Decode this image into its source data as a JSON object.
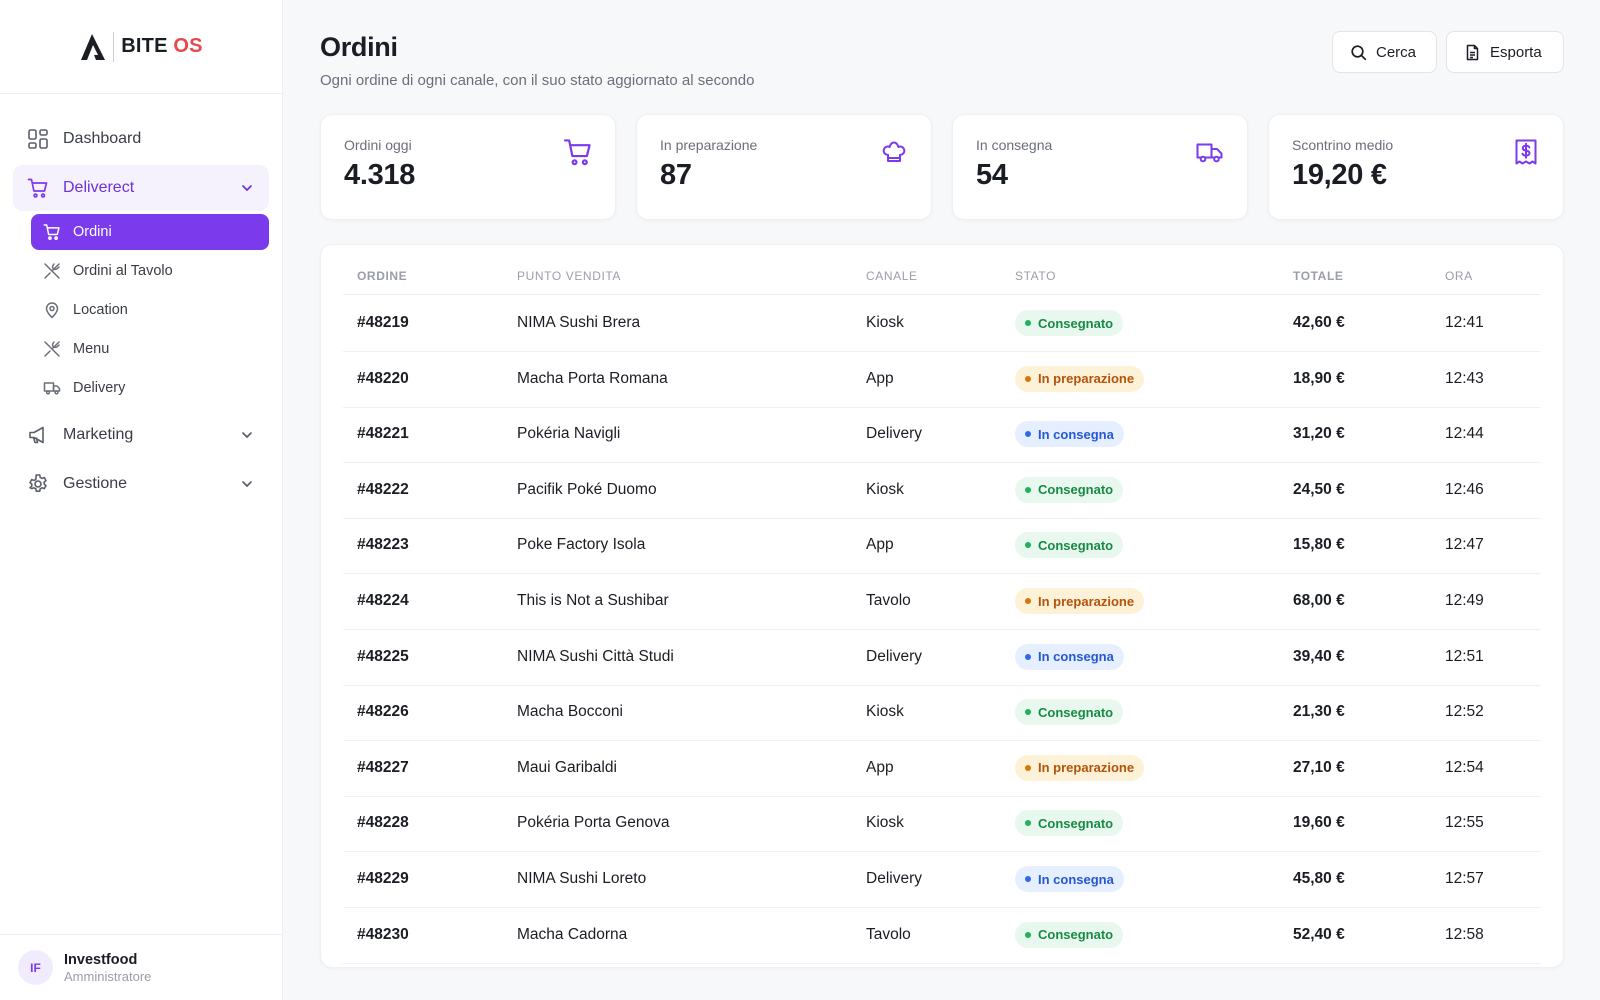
{
  "brand": {
    "name_main": "BITE",
    "name_accent": "OS",
    "accent_color": "#e5484d"
  },
  "sidebar": {
    "items": [
      {
        "label": "Dashboard",
        "icon": "dashboard-icon"
      },
      {
        "label": "Deliverect",
        "icon": "cart-icon",
        "expanded": true
      },
      {
        "label": "Marketing",
        "icon": "megaphone-icon"
      },
      {
        "label": "Gestione",
        "icon": "gear-icon"
      }
    ],
    "subitems": [
      {
        "label": "Ordini",
        "icon": "cart-icon",
        "active": true
      },
      {
        "label": "Ordini al Tavolo",
        "icon": "utensils-icon"
      },
      {
        "label": "Location",
        "icon": "map-pin-icon"
      },
      {
        "label": "Menu",
        "icon": "utensils-icon"
      },
      {
        "label": "Delivery",
        "icon": "truck-icon"
      }
    ]
  },
  "user": {
    "initials": "IF",
    "name": "Investfood",
    "role": "Amministratore"
  },
  "header": {
    "title": "Ordini",
    "subtitle": "Ogni ordine di ogni canale, con il suo stato aggiornato al secondo",
    "search_label": "Cerca",
    "export_label": "Esporta"
  },
  "stats": [
    {
      "label": "Ordini oggi",
      "value": "4.318",
      "icon": "cart-icon"
    },
    {
      "label": "In preparazione",
      "value": "87",
      "icon": "chef-hat-icon"
    },
    {
      "label": "In consegna",
      "value": "54",
      "icon": "truck-icon"
    },
    {
      "label": "Scontrino medio",
      "value": "19,20 €",
      "icon": "receipt-icon"
    }
  ],
  "colors": {
    "accent": "#7c3aed",
    "green": "#20b15a",
    "orange": "#d97706",
    "blue": "#2f6ae6"
  },
  "table": {
    "headers": {
      "order": "ORDINE",
      "store": "PUNTO VENDITA",
      "channel": "CANALE",
      "status": "STATO",
      "total": "TOTALE",
      "time": "ORA"
    },
    "rows": [
      {
        "order": "#48219",
        "store": "NIMA Sushi Brera",
        "channel": "Kiosk",
        "status": "Consegnato",
        "status_type": "green",
        "total": "42,60 €",
        "time": "12:41"
      },
      {
        "order": "#48220",
        "store": "Macha Porta Romana",
        "channel": "App",
        "status": "In preparazione",
        "status_type": "orange",
        "total": "18,90 €",
        "time": "12:43"
      },
      {
        "order": "#48221",
        "store": "Pokéria Navigli",
        "channel": "Delivery",
        "status": "In consegna",
        "status_type": "blue",
        "total": "31,20 €",
        "time": "12:44"
      },
      {
        "order": "#48222",
        "store": "Pacifik Poké Duomo",
        "channel": "Kiosk",
        "status": "Consegnato",
        "status_type": "green",
        "total": "24,50 €",
        "time": "12:46"
      },
      {
        "order": "#48223",
        "store": "Poke Factory Isola",
        "channel": "App",
        "status": "Consegnato",
        "status_type": "green",
        "total": "15,80 €",
        "time": "12:47"
      },
      {
        "order": "#48224",
        "store": "This is Not a Sushibar",
        "channel": "Tavolo",
        "status": "In preparazione",
        "status_type": "orange",
        "total": "68,00 €",
        "time": "12:49"
      },
      {
        "order": "#48225",
        "store": "NIMA Sushi Città Studi",
        "channel": "Delivery",
        "status": "In consegna",
        "status_type": "blue",
        "total": "39,40 €",
        "time": "12:51"
      },
      {
        "order": "#48226",
        "store": "Macha Bocconi",
        "channel": "Kiosk",
        "status": "Consegnato",
        "status_type": "green",
        "total": "21,30 €",
        "time": "12:52"
      },
      {
        "order": "#48227",
        "store": "Maui Garibaldi",
        "channel": "App",
        "status": "In preparazione",
        "status_type": "orange",
        "total": "27,10 €",
        "time": "12:54"
      },
      {
        "order": "#48228",
        "store": "Pokéria Porta Genova",
        "channel": "Kiosk",
        "status": "Consegnato",
        "status_type": "green",
        "total": "19,60 €",
        "time": "12:55"
      },
      {
        "order": "#48229",
        "store": "NIMA Sushi Loreto",
        "channel": "Delivery",
        "status": "In consegna",
        "status_type": "blue",
        "total": "45,80 €",
        "time": "12:57"
      },
      {
        "order": "#48230",
        "store": "Macha Cadorna",
        "channel": "Tavolo",
        "status": "Consegnato",
        "status_type": "green",
        "total": "52,40 €",
        "time": "12:58"
      }
    ]
  }
}
